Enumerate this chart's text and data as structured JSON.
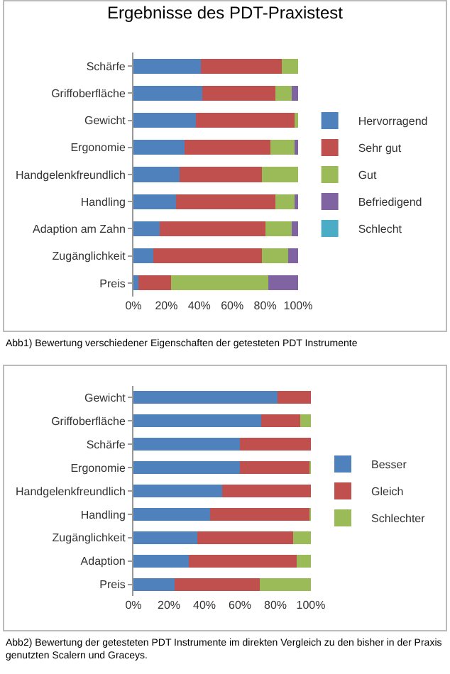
{
  "chart_data": [
    {
      "type": "bar",
      "orientation": "horizontal",
      "stacked": true,
      "title": "Ergebnisse des PDT-Praxistest",
      "categories": [
        "Schärfe",
        "Griffoberfläche",
        "Gewicht",
        "Ergonomie",
        "Handgelenkfreundlich",
        "Handling",
        "Adaption am Zahn",
        "Zugänglichkeit",
        "Preis"
      ],
      "series": [
        {
          "name": "Hervorragend",
          "color": "#4f81bd",
          "values": [
            41,
            42,
            38,
            31,
            28,
            26,
            16,
            12,
            3
          ]
        },
        {
          "name": "Sehr gut",
          "color": "#c0504d",
          "values": [
            49,
            44,
            60,
            52,
            50,
            60,
            64,
            66,
            20
          ]
        },
        {
          "name": "Gut",
          "color": "#9bbb59",
          "values": [
            10,
            10,
            2,
            15,
            22,
            12,
            16,
            16,
            59
          ]
        },
        {
          "name": "Befriedigend",
          "color": "#8064a2",
          "values": [
            0,
            4,
            0,
            2,
            0,
            2,
            4,
            6,
            18
          ]
        },
        {
          "name": "Schlecht",
          "color": "#4bacc6",
          "values": [
            0,
            0,
            0,
            0,
            0,
            0,
            0,
            0,
            0
          ]
        }
      ],
      "xlim": [
        0,
        100
      ],
      "xticks": [
        {
          "value": 0,
          "label": "0%"
        },
        {
          "value": 20,
          "label": "20%"
        },
        {
          "value": 40,
          "label": "40%"
        },
        {
          "value": 60,
          "label": "60%"
        },
        {
          "value": 80,
          "label": "80%"
        },
        {
          "value": 100,
          "label": "100%"
        }
      ],
      "grid": false,
      "legend": "right",
      "annotations": [
        "Abb1) Bewertung verschiedener Eigenschaften der getesteten PDT Instrumente"
      ]
    },
    {
      "type": "bar",
      "orientation": "horizontal",
      "stacked": true,
      "categories": [
        "Gewicht",
        "Griffoberfläche",
        "Schärfe",
        "Ergonomie",
        "Handgelenkfreundlich",
        "Handling",
        "Zugänglichkeit",
        "Adaption",
        "Preis"
      ],
      "series": [
        {
          "name": "Besser",
          "color": "#4f81bd",
          "values": [
            81,
            72,
            60,
            60,
            50,
            43,
            36,
            31,
            23
          ]
        },
        {
          "name": "Gleich",
          "color": "#c0504d",
          "values": [
            19,
            22,
            40,
            39,
            50,
            56,
            54,
            61,
            48
          ]
        },
        {
          "name": "Schlechter",
          "color": "#9bbb59",
          "values": [
            0,
            6,
            0,
            1,
            0,
            1,
            10,
            8,
            29
          ]
        }
      ],
      "xlim": [
        0,
        100
      ],
      "xticks": [
        {
          "value": 0,
          "label": "0%"
        },
        {
          "value": 20,
          "label": "20%"
        },
        {
          "value": 40,
          "label": "40%"
        },
        {
          "value": 60,
          "label": "60%"
        },
        {
          "value": 80,
          "label": "80%"
        },
        {
          "value": 100,
          "label": "100%"
        }
      ],
      "grid": false,
      "legend": "right",
      "annotations": [
        "Abb2) Bewertung der getesteten PDT Instrumente im direkten Vergleich zu den bisher in der Praxis genutzten Scalern und Graceys."
      ]
    }
  ]
}
